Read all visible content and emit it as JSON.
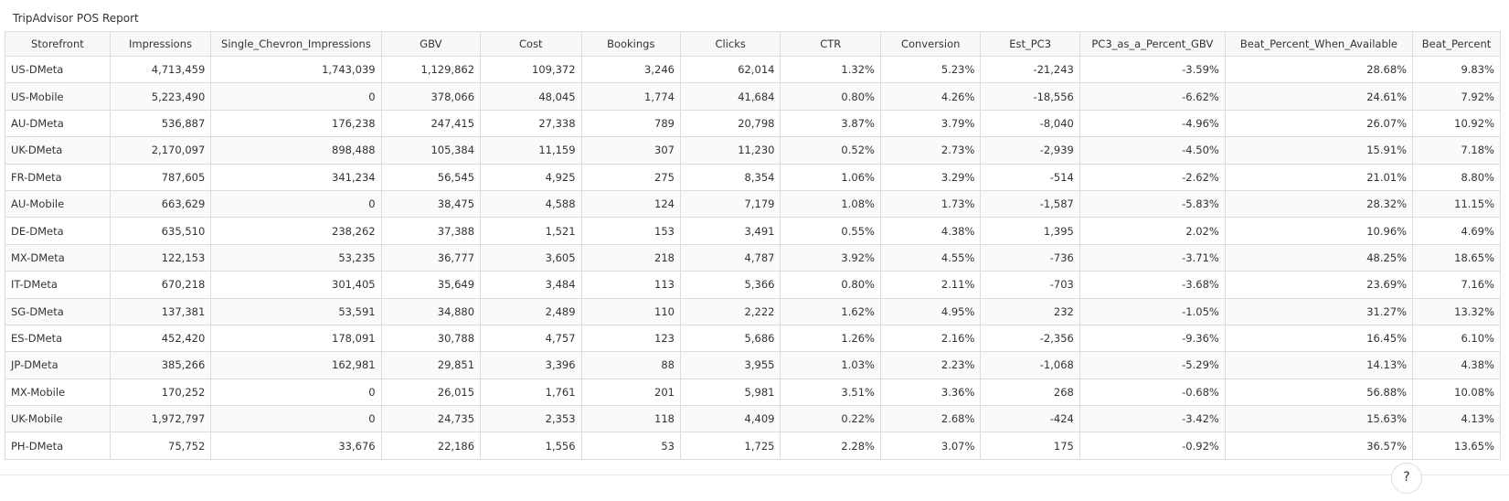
{
  "report": {
    "title": "TripAdvisor POS Report"
  },
  "table": {
    "columns": [
      "Storefront",
      "Impressions",
      "Single_Chevron_Impressions",
      "GBV",
      "Cost",
      "Bookings",
      "Clicks",
      "CTR",
      "Conversion",
      "Est_PC3",
      "PC3_as_a_Percent_GBV",
      "Beat_Percent_When_Available",
      "Beat_Percent"
    ],
    "rows": [
      [
        "US-DMeta",
        "4,713,459",
        "1,743,039",
        "1,129,862",
        "109,372",
        "3,246",
        "62,014",
        "1.32%",
        "5.23%",
        "-21,243",
        "-3.59%",
        "28.68%",
        "9.83%"
      ],
      [
        "US-Mobile",
        "5,223,490",
        "0",
        "378,066",
        "48,045",
        "1,774",
        "41,684",
        "0.80%",
        "4.26%",
        "-18,556",
        "-6.62%",
        "24.61%",
        "7.92%"
      ],
      [
        "AU-DMeta",
        "536,887",
        "176,238",
        "247,415",
        "27,338",
        "789",
        "20,798",
        "3.87%",
        "3.79%",
        "-8,040",
        "-4.96%",
        "26.07%",
        "10.92%"
      ],
      [
        "UK-DMeta",
        "2,170,097",
        "898,488",
        "105,384",
        "11,159",
        "307",
        "11,230",
        "0.52%",
        "2.73%",
        "-2,939",
        "-4.50%",
        "15.91%",
        "7.18%"
      ],
      [
        "FR-DMeta",
        "787,605",
        "341,234",
        "56,545",
        "4,925",
        "275",
        "8,354",
        "1.06%",
        "3.29%",
        "-514",
        "-2.62%",
        "21.01%",
        "8.80%"
      ],
      [
        "AU-Mobile",
        "663,629",
        "0",
        "38,475",
        "4,588",
        "124",
        "7,179",
        "1.08%",
        "1.73%",
        "-1,587",
        "-5.83%",
        "28.32%",
        "11.15%"
      ],
      [
        "DE-DMeta",
        "635,510",
        "238,262",
        "37,388",
        "1,521",
        "153",
        "3,491",
        "0.55%",
        "4.38%",
        "1,395",
        "2.02%",
        "10.96%",
        "4.69%"
      ],
      [
        "MX-DMeta",
        "122,153",
        "53,235",
        "36,777",
        "3,605",
        "218",
        "4,787",
        "3.92%",
        "4.55%",
        "-736",
        "-3.71%",
        "48.25%",
        "18.65%"
      ],
      [
        "IT-DMeta",
        "670,218",
        "301,405",
        "35,649",
        "3,484",
        "113",
        "5,366",
        "0.80%",
        "2.11%",
        "-703",
        "-3.68%",
        "23.69%",
        "7.16%"
      ],
      [
        "SG-DMeta",
        "137,381",
        "53,591",
        "34,880",
        "2,489",
        "110",
        "2,222",
        "1.62%",
        "4.95%",
        "232",
        "-1.05%",
        "31.27%",
        "13.32%"
      ],
      [
        "ES-DMeta",
        "452,420",
        "178,091",
        "30,788",
        "4,757",
        "123",
        "5,686",
        "1.26%",
        "2.16%",
        "-2,356",
        "-9.36%",
        "16.45%",
        "6.10%"
      ],
      [
        "JP-DMeta",
        "385,266",
        "162,981",
        "29,851",
        "3,396",
        "88",
        "3,955",
        "1.03%",
        "2.23%",
        "-1,068",
        "-5.29%",
        "14.13%",
        "4.38%"
      ],
      [
        "MX-Mobile",
        "170,252",
        "0",
        "26,015",
        "1,761",
        "201",
        "5,981",
        "3.51%",
        "3.36%",
        "268",
        "-0.68%",
        "56.88%",
        "10.08%"
      ],
      [
        "UK-Mobile",
        "1,972,797",
        "0",
        "24,735",
        "2,353",
        "118",
        "4,409",
        "0.22%",
        "2.68%",
        "-424",
        "-3.42%",
        "15.63%",
        "4.13%"
      ],
      [
        "PH-DMeta",
        "75,752",
        "33,676",
        "22,186",
        "1,556",
        "53",
        "1,725",
        "2.28%",
        "3.07%",
        "175",
        "-0.92%",
        "36.57%",
        "13.65%"
      ]
    ]
  },
  "help": {
    "label": "?",
    "icon": "help-icon"
  }
}
